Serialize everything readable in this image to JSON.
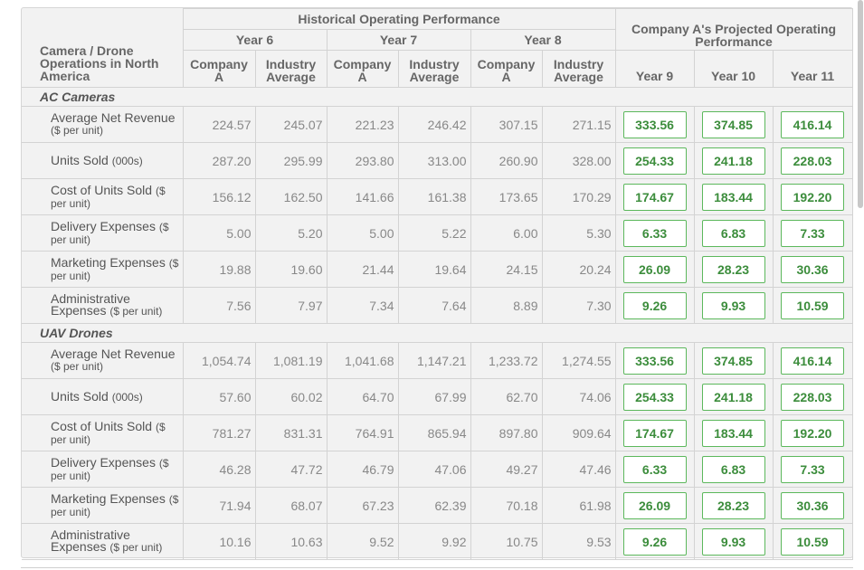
{
  "header": {
    "title": "Camera / Drone Operations in North America",
    "historical": "Historical Operating Performance",
    "years": [
      "Year 6",
      "Year 7",
      "Year 8"
    ],
    "subheaders": [
      "Company A",
      "Industry Average"
    ],
    "projected": "Company A's Projected Operating Performance",
    "projected_years": [
      "Year 9",
      "Year 10",
      "Year 11"
    ]
  },
  "sections": [
    {
      "title": "AC Cameras",
      "rows": [
        {
          "label": "Average Net Revenue",
          "unit": "($ per unit)",
          "values": [
            "224.57",
            "245.07",
            "221.23",
            "246.42",
            "307.15",
            "271.15"
          ],
          "projected": [
            "333.56",
            "374.85",
            "416.14"
          ]
        },
        {
          "label": "Units Sold",
          "unit": "(000s)",
          "values": [
            "287.20",
            "295.99",
            "293.80",
            "313.00",
            "260.90",
            "328.00"
          ],
          "projected": [
            "254.33",
            "241.18",
            "228.03"
          ]
        },
        {
          "label": "Cost of Units Sold",
          "unit": "($ per unit)",
          "values": [
            "156.12",
            "162.50",
            "141.66",
            "161.38",
            "173.65",
            "170.29"
          ],
          "projected": [
            "174.67",
            "183.44",
            "192.20"
          ]
        },
        {
          "label": "Delivery Expenses",
          "unit": "($ per unit)",
          "values": [
            "5.00",
            "5.20",
            "5.00",
            "5.22",
            "6.00",
            "5.30"
          ],
          "projected": [
            "6.33",
            "6.83",
            "7.33"
          ]
        },
        {
          "label": "Marketing Expenses",
          "unit": "($ per unit)",
          "values": [
            "19.88",
            "19.60",
            "21.44",
            "19.64",
            "24.15",
            "20.24"
          ],
          "projected": [
            "26.09",
            "28.23",
            "30.36"
          ]
        },
        {
          "label": "Administrative Expenses",
          "unit": "($ per unit)",
          "values": [
            "7.56",
            "7.97",
            "7.34",
            "7.64",
            "8.89",
            "7.30"
          ],
          "projected": [
            "9.26",
            "9.93",
            "10.59"
          ]
        }
      ]
    },
    {
      "title": "UAV Drones",
      "rows": [
        {
          "label": "Average Net Revenue",
          "unit": "($ per unit)",
          "values": [
            "1,054.74",
            "1,081.19",
            "1,041.68",
            "1,147.21",
            "1,233.72",
            "1,274.55"
          ],
          "projected": [
            "333.56",
            "374.85",
            "416.14"
          ]
        },
        {
          "label": "Units Sold",
          "unit": "(000s)",
          "values": [
            "57.60",
            "60.02",
            "64.70",
            "67.99",
            "62.70",
            "74.06"
          ],
          "projected": [
            "254.33",
            "241.18",
            "228.03"
          ]
        },
        {
          "label": "Cost of Units Sold",
          "unit": "($ per unit)",
          "values": [
            "781.27",
            "831.31",
            "764.91",
            "865.94",
            "897.80",
            "909.64"
          ],
          "projected": [
            "174.67",
            "183.44",
            "192.20"
          ]
        },
        {
          "label": "Delivery Expenses",
          "unit": "($ per unit)",
          "values": [
            "46.28",
            "47.72",
            "46.79",
            "47.06",
            "49.27",
            "47.46"
          ],
          "projected": [
            "6.33",
            "6.83",
            "7.33"
          ]
        },
        {
          "label": "Marketing Expenses",
          "unit": "($ per unit)",
          "values": [
            "71.94",
            "68.07",
            "67.23",
            "62.39",
            "70.18",
            "61.98"
          ],
          "projected": [
            "26.09",
            "28.23",
            "30.36"
          ]
        },
        {
          "label": "Administrative Expenses",
          "unit": "($ per unit)",
          "values": [
            "10.16",
            "10.63",
            "9.52",
            "9.92",
            "10.75",
            "9.53"
          ],
          "projected": [
            "9.26",
            "9.93",
            "10.59"
          ]
        }
      ]
    }
  ]
}
